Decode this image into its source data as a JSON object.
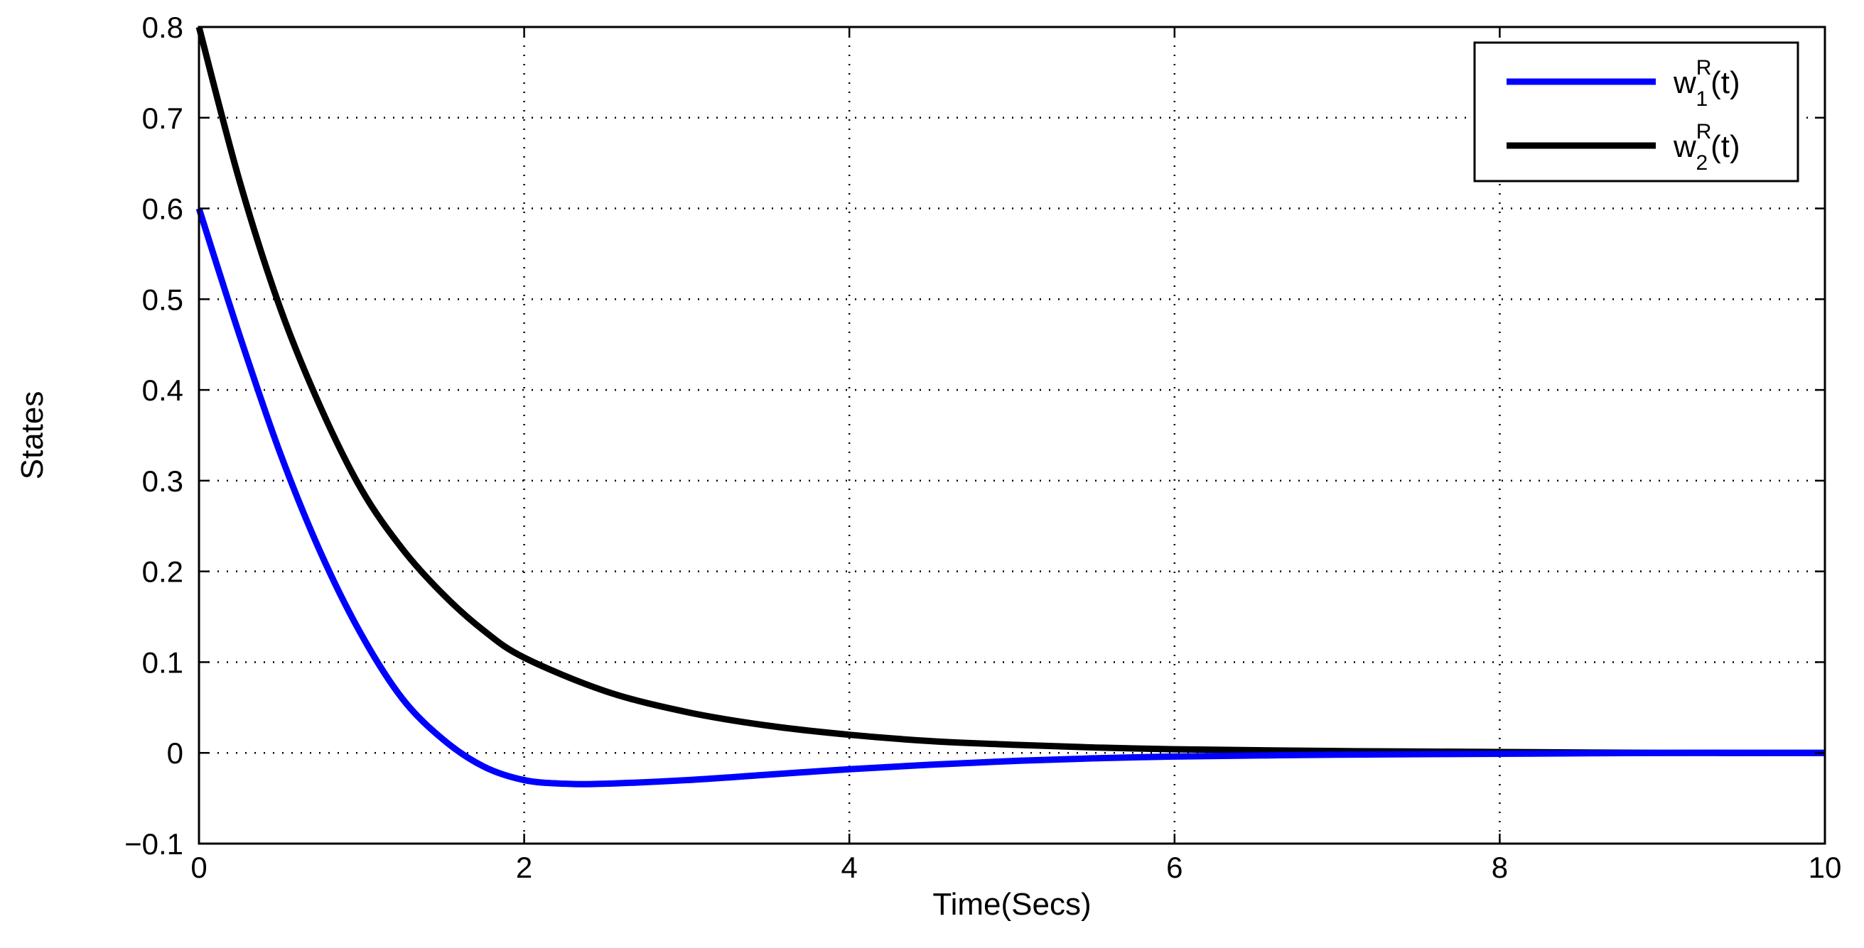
{
  "chart_data": {
    "type": "line",
    "xlabel": "Time(Secs)",
    "ylabel": "States",
    "xlim": [
      0,
      10
    ],
    "ylim": [
      -0.1,
      0.8
    ],
    "xticks": [
      0,
      2,
      4,
      6,
      8,
      10
    ],
    "xtick_labels": [
      "0",
      "2",
      "4",
      "6",
      "8",
      "10"
    ],
    "yticks": [
      -0.1,
      0,
      0.1,
      0.2,
      0.3,
      0.4,
      0.5,
      0.6,
      0.7,
      0.8
    ],
    "ytick_labels": [
      "−0.1",
      "0",
      "0.1",
      "0.2",
      "0.3",
      "0.4",
      "0.5",
      "0.6",
      "0.7",
      "0.8"
    ],
    "grid": true,
    "legend_position": "top-right",
    "series": [
      {
        "name": "w1R(t)",
        "legend": {
          "base": "w",
          "sup": "R",
          "sub": "1",
          "suffix": "(t)"
        },
        "color": "#0000ff",
        "x": [
          0,
          0.25,
          0.5,
          0.75,
          1.0,
          1.25,
          1.5,
          1.75,
          2.0,
          2.25,
          2.5,
          3.0,
          3.5,
          4.0,
          4.5,
          5.0,
          5.5,
          6.0,
          7.0,
          8.0,
          9.0,
          10.0
        ],
        "y": [
          0.6,
          0.46,
          0.33,
          0.22,
          0.13,
          0.06,
          0.015,
          -0.015,
          -0.03,
          -0.034,
          -0.034,
          -0.03,
          -0.024,
          -0.018,
          -0.013,
          -0.009,
          -0.006,
          -0.004,
          -0.002,
          -0.001,
          0,
          0
        ]
      },
      {
        "name": "w2R(t)",
        "legend": {
          "base": "w",
          "sup": "R",
          "sub": "2",
          "suffix": "(t)"
        },
        "color": "#000000",
        "x": [
          0,
          0.25,
          0.5,
          0.75,
          1.0,
          1.25,
          1.5,
          1.75,
          2.0,
          2.5,
          3.0,
          3.5,
          4.0,
          4.5,
          5.0,
          5.5,
          6.0,
          7.0,
          8.0,
          9.0,
          10.0
        ],
        "y": [
          0.8,
          0.63,
          0.49,
          0.38,
          0.29,
          0.225,
          0.175,
          0.135,
          0.105,
          0.068,
          0.045,
          0.03,
          0.02,
          0.013,
          0.009,
          0.006,
          0.004,
          0.002,
          0.001,
          0,
          0
        ]
      }
    ]
  }
}
